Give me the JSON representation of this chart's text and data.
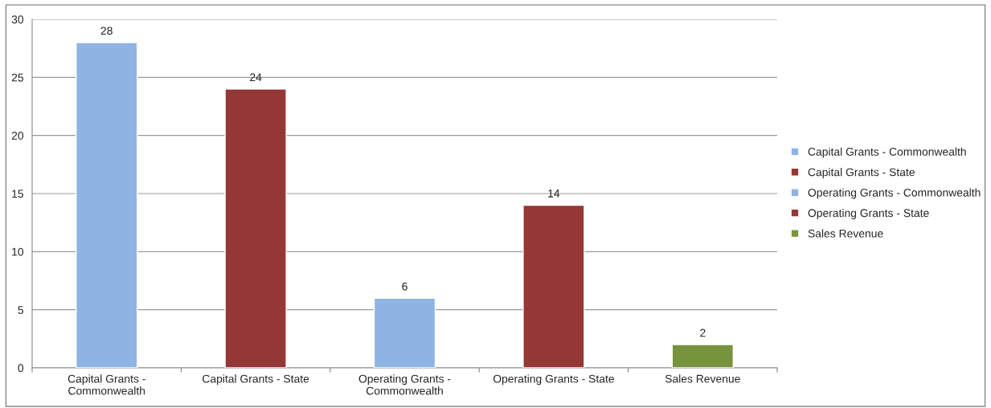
{
  "chart_data": {
    "type": "bar",
    "categories": [
      "Capital Grants - Commonwealth",
      "Capital Grants - State",
      "Operating Grants - Commonwealth",
      "Operating Grants - State",
      "Sales Revenue"
    ],
    "stacked": true,
    "series": [
      {
        "name": "Capital Grants - Commonwealth",
        "color": "#8eb4e3",
        "values": [
          28,
          null,
          null,
          null,
          null
        ]
      },
      {
        "name": "Capital Grants - State",
        "color": "#953735",
        "values": [
          null,
          24,
          null,
          null,
          null
        ]
      },
      {
        "name": "Operating Grants - Commonwealth",
        "color": "#8eb4e3",
        "values": [
          null,
          null,
          6,
          null,
          null
        ]
      },
      {
        "name": "Operating Grants - State",
        "color": "#953735",
        "values": [
          null,
          null,
          null,
          14,
          null
        ]
      },
      {
        "name": "Sales Revenue",
        "color": "#77933c",
        "values": [
          null,
          null,
          null,
          null,
          2
        ]
      }
    ],
    "ylim": [
      0,
      30
    ],
    "yticks": [
      0,
      5,
      10,
      15,
      20,
      25,
      30
    ],
    "grid": "y",
    "legend": "right",
    "data_labels": true
  }
}
